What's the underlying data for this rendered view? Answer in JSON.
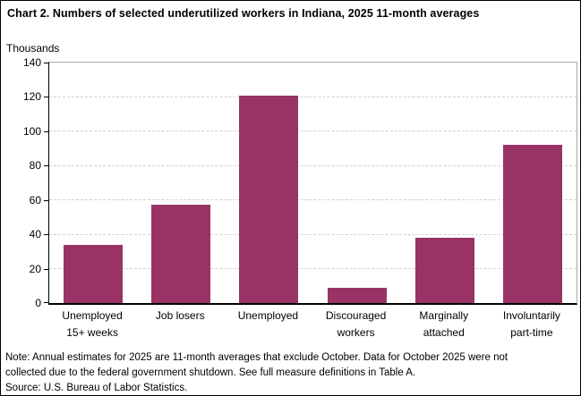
{
  "header": {
    "title": "Chart 2. Numbers of selected underutilized workers in Indiana, 2025 11-month averages"
  },
  "chart_data": {
    "type": "bar",
    "title": "Chart 2. Numbers of selected underutilized workers in Indiana, 2025 11-month averages",
    "units_label": "Thousands",
    "categories": [
      [
        "Unemployed",
        "15+ weeks"
      ],
      [
        "Job losers"
      ],
      [
        "Unemployed"
      ],
      [
        "Discouraged",
        "workers"
      ],
      [
        "Marginally",
        "attached"
      ],
      [
        "Involuntarily",
        "part-time"
      ]
    ],
    "values": [
      34,
      57,
      121,
      9,
      38,
      92
    ],
    "ylim": [
      0,
      140
    ],
    "yticks": [
      0,
      20,
      40,
      60,
      80,
      100,
      120,
      140
    ],
    "grid": true,
    "legend": "none",
    "bar_color": "#993366",
    "gridline_color": "#d0d0d0",
    "plot_border_color": "#a6a6a6",
    "axis_color": "#000000"
  },
  "footer": {
    "note_line1": "Note: Annual estimates for 2025 are 11-month averages that exclude October. Data for October 2025 were not",
    "note_line2": "collected due to the federal government shutdown. See full measure definitions in Table A.",
    "source": "Source: U.S. Bureau of Labor Statistics."
  }
}
